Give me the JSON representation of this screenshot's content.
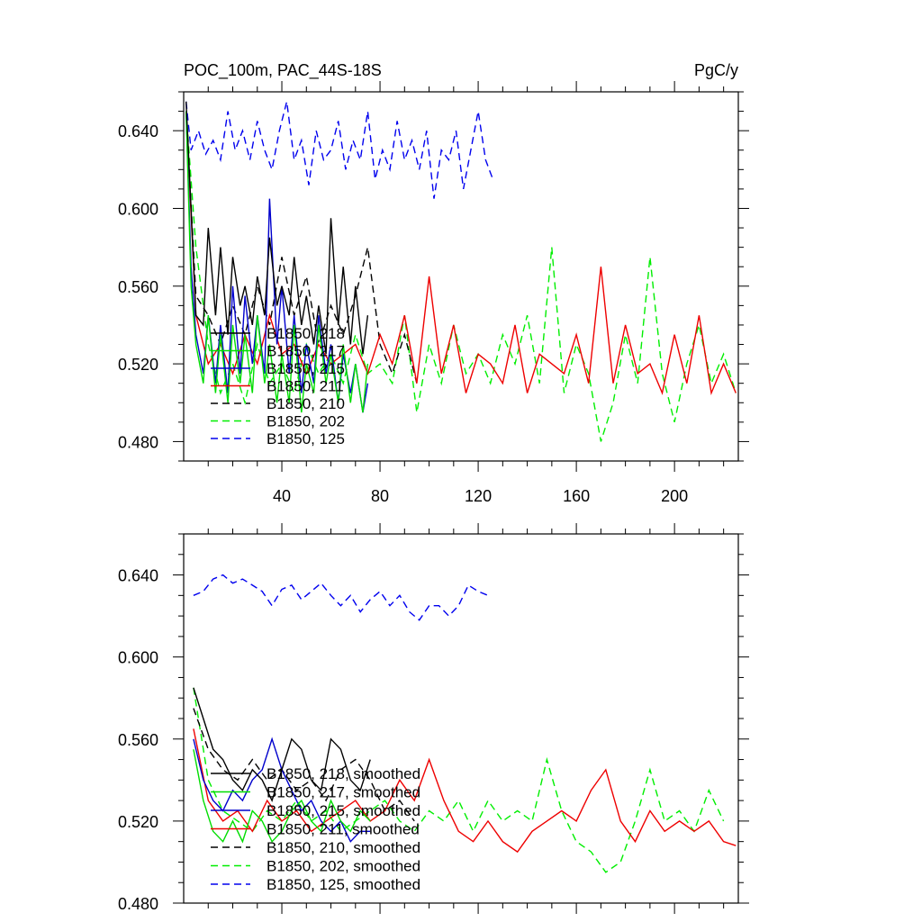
{
  "chart_data": [
    {
      "type": "line",
      "title": "POC_100m, PAC_44S-18S",
      "units": "PgC/y",
      "xlim": [
        0,
        226
      ],
      "ylim": [
        0.47,
        0.66
      ],
      "xticks": [
        40,
        80,
        120,
        160,
        200
      ],
      "xtick_labels": [
        "40",
        "80",
        "120",
        "160",
        "200"
      ],
      "yticks": [
        0.48,
        0.52,
        0.56,
        0.6,
        0.64
      ],
      "ytick_labels": [
        "0.480",
        "0.520",
        "0.560",
        "0.600",
        "0.640"
      ],
      "legend_position": "lower-left",
      "series": [
        {
          "name": "B1850, 218",
          "color": "#000000",
          "dash": "solid",
          "x": [
            1,
            3,
            5,
            8,
            10,
            13,
            15,
            18,
            20,
            23,
            25,
            28,
            30,
            33,
            35,
            38,
            40,
            43,
            45,
            48,
            50,
            53,
            55,
            58,
            60,
            63,
            65,
            68,
            70,
            73,
            75
          ],
          "y": [
            0.655,
            0.6,
            0.545,
            0.54,
            0.59,
            0.545,
            0.58,
            0.535,
            0.575,
            0.55,
            0.56,
            0.54,
            0.565,
            0.545,
            0.585,
            0.55,
            0.56,
            0.545,
            0.575,
            0.54,
            0.555,
            0.53,
            0.55,
            0.525,
            0.595,
            0.54,
            0.57,
            0.53,
            0.56,
            0.525,
            0.545
          ]
        },
        {
          "name": "B1850, 217",
          "color": "#00dd00",
          "dash": "solid",
          "x": [
            1,
            3,
            5,
            8,
            10,
            13,
            15,
            18,
            20,
            23,
            25,
            28,
            30,
            33,
            35,
            38,
            40,
            43,
            45,
            48,
            50,
            53,
            55,
            58,
            60,
            63,
            65,
            68,
            70,
            73,
            75
          ],
          "y": [
            0.65,
            0.56,
            0.53,
            0.51,
            0.545,
            0.505,
            0.535,
            0.5,
            0.54,
            0.51,
            0.535,
            0.505,
            0.545,
            0.51,
            0.53,
            0.5,
            0.525,
            0.5,
            0.54,
            0.495,
            0.52,
            0.505,
            0.54,
            0.51,
            0.525,
            0.5,
            0.53,
            0.5,
            0.52,
            0.495,
            0.52
          ]
        },
        {
          "name": "B1850, 215",
          "color": "#0000cc",
          "dash": "solid",
          "x": [
            1,
            3,
            5,
            8,
            10,
            13,
            15,
            18,
            20,
            23,
            25,
            28,
            30,
            33,
            35,
            38,
            40,
            43,
            45,
            48,
            50,
            53,
            55,
            58,
            60,
            63,
            65,
            68,
            70,
            73,
            75
          ],
          "y": [
            0.65,
            0.57,
            0.535,
            0.515,
            0.545,
            0.51,
            0.54,
            0.505,
            0.56,
            0.515,
            0.555,
            0.52,
            0.545,
            0.515,
            0.605,
            0.53,
            0.56,
            0.515,
            0.545,
            0.505,
            0.53,
            0.51,
            0.545,
            0.515,
            0.53,
            0.5,
            0.525,
            0.505,
            0.52,
            0.495,
            0.51
          ]
        },
        {
          "name": "B1850, 211",
          "color": "#ee0000",
          "dash": "solid",
          "x": [
            1,
            5,
            10,
            15,
            20,
            25,
            30,
            35,
            40,
            45,
            50,
            55,
            60,
            65,
            70,
            75,
            80,
            85,
            90,
            95,
            100,
            105,
            110,
            115,
            120,
            125,
            130,
            135,
            140,
            145,
            150,
            155,
            160,
            165,
            170,
            175,
            180,
            185,
            190,
            195,
            200,
            205,
            210,
            215,
            220,
            225
          ],
          "y": [
            0.65,
            0.545,
            0.52,
            0.53,
            0.515,
            0.535,
            0.52,
            0.545,
            0.525,
            0.53,
            0.515,
            0.53,
            0.52,
            0.525,
            0.53,
            0.515,
            0.535,
            0.52,
            0.545,
            0.51,
            0.565,
            0.515,
            0.54,
            0.505,
            0.525,
            0.52,
            0.51,
            0.54,
            0.505,
            0.525,
            0.52,
            0.515,
            0.535,
            0.51,
            0.57,
            0.51,
            0.54,
            0.515,
            0.52,
            0.505,
            0.535,
            0.51,
            0.545,
            0.505,
            0.52,
            0.505
          ]
        },
        {
          "name": "B1850, 210",
          "color": "#000000",
          "dash": "dash",
          "x": [
            1,
            5,
            10,
            15,
            20,
            25,
            30,
            35,
            40,
            45,
            50,
            55,
            60,
            65,
            70,
            75,
            80,
            85,
            90,
            95
          ],
          "y": [
            0.65,
            0.555,
            0.545,
            0.53,
            0.55,
            0.535,
            0.56,
            0.54,
            0.575,
            0.545,
            0.565,
            0.53,
            0.55,
            0.535,
            0.555,
            0.58,
            0.53,
            0.515,
            0.535,
            0.51
          ]
        },
        {
          "name": "B1850, 202",
          "color": "#00ee00",
          "dash": "dash",
          "x": [
            1,
            5,
            10,
            15,
            20,
            25,
            30,
            35,
            40,
            45,
            50,
            55,
            60,
            65,
            70,
            75,
            80,
            85,
            90,
            95,
            100,
            105,
            110,
            115,
            120,
            125,
            130,
            135,
            140,
            145,
            150,
            155,
            160,
            165,
            170,
            175,
            180,
            185,
            190,
            195,
            200,
            205,
            210,
            215,
            220,
            225
          ],
          "y": [
            0.65,
            0.58,
            0.53,
            0.505,
            0.52,
            0.5,
            0.53,
            0.51,
            0.52,
            0.505,
            0.53,
            0.515,
            0.525,
            0.51,
            0.535,
            0.515,
            0.52,
            0.51,
            0.545,
            0.495,
            0.53,
            0.51,
            0.54,
            0.515,
            0.525,
            0.51,
            0.535,
            0.52,
            0.545,
            0.51,
            0.58,
            0.505,
            0.53,
            0.515,
            0.48,
            0.5,
            0.535,
            0.51,
            0.575,
            0.515,
            0.49,
            0.52,
            0.54,
            0.51,
            0.525,
            0.505
          ]
        },
        {
          "name": "B1850, 125",
          "color": "#0000ee",
          "dash": "dash",
          "x": [
            1,
            3,
            6,
            9,
            12,
            15,
            18,
            21,
            24,
            27,
            30,
            33,
            36,
            39,
            42,
            45,
            48,
            51,
            54,
            57,
            60,
            63,
            66,
            69,
            72,
            75,
            78,
            81,
            84,
            87,
            90,
            93,
            96,
            99,
            102,
            105,
            108,
            111,
            114,
            117,
            120,
            123,
            126
          ],
          "y": [
            0.655,
            0.63,
            0.64,
            0.628,
            0.635,
            0.625,
            0.65,
            0.63,
            0.64,
            0.625,
            0.645,
            0.63,
            0.62,
            0.64,
            0.655,
            0.625,
            0.635,
            0.612,
            0.64,
            0.625,
            0.63,
            0.645,
            0.62,
            0.635,
            0.625,
            0.65,
            0.615,
            0.63,
            0.62,
            0.645,
            0.625,
            0.635,
            0.62,
            0.64,
            0.605,
            0.63,
            0.625,
            0.64,
            0.61,
            0.63,
            0.65,
            0.625,
            0.615
          ]
        }
      ]
    },
    {
      "type": "line",
      "title": "",
      "units": "",
      "xlim": [
        0,
        226
      ],
      "ylim": [
        0.48,
        0.66
      ],
      "xticks": [
        40,
        80,
        120,
        160,
        200
      ],
      "xtick_labels": [
        "",
        "",
        "",
        "",
        ""
      ],
      "yticks": [
        0.48,
        0.52,
        0.56,
        0.6,
        0.64
      ],
      "ytick_labels": [
        "0.480",
        "0.520",
        "0.560",
        "0.600",
        "0.640"
      ],
      "legend_position": "lower-left",
      "series": [
        {
          "name": "B1850, 218, smoothed",
          "color": "#000000",
          "dash": "solid",
          "x": [
            4,
            8,
            12,
            16,
            20,
            24,
            28,
            32,
            36,
            40,
            44,
            48,
            52,
            56,
            60,
            64,
            68,
            72,
            76
          ],
          "y": [
            0.585,
            0.57,
            0.555,
            0.55,
            0.54,
            0.535,
            0.545,
            0.54,
            0.53,
            0.545,
            0.56,
            0.555,
            0.54,
            0.535,
            0.56,
            0.555,
            0.54,
            0.535,
            0.55
          ]
        },
        {
          "name": "B1850, 217, smoothed",
          "color": "#00dd00",
          "dash": "solid",
          "x": [
            4,
            8,
            12,
            16,
            20,
            24,
            28,
            32,
            36,
            40,
            44,
            48,
            52,
            56,
            60,
            64,
            68,
            72,
            76
          ],
          "y": [
            0.555,
            0.53,
            0.515,
            0.51,
            0.52,
            0.51,
            0.525,
            0.52,
            0.51,
            0.515,
            0.525,
            0.53,
            0.52,
            0.515,
            0.53,
            0.52,
            0.515,
            0.525,
            0.52
          ]
        },
        {
          "name": "B1850, 215, smoothed",
          "color": "#0000cc",
          "dash": "solid",
          "x": [
            4,
            8,
            12,
            16,
            20,
            24,
            28,
            32,
            36,
            40,
            44,
            48,
            52,
            56,
            60,
            64,
            68,
            72,
            76
          ],
          "y": [
            0.56,
            0.54,
            0.53,
            0.525,
            0.535,
            0.53,
            0.54,
            0.545,
            0.56,
            0.545,
            0.535,
            0.525,
            0.53,
            0.52,
            0.515,
            0.52,
            0.51,
            0.515,
            0.515
          ]
        },
        {
          "name": "B1850, 211, smoothed",
          "color": "#ee0000",
          "dash": "solid",
          "x": [
            4,
            10,
            16,
            22,
            28,
            34,
            40,
            46,
            52,
            58,
            64,
            70,
            76,
            82,
            88,
            94,
            100,
            106,
            112,
            118,
            124,
            130,
            136,
            142,
            148,
            154,
            160,
            166,
            172,
            178,
            184,
            190,
            196,
            202,
            208,
            214,
            220,
            225
          ],
          "y": [
            0.565,
            0.53,
            0.52,
            0.525,
            0.515,
            0.53,
            0.52,
            0.525,
            0.515,
            0.52,
            0.525,
            0.53,
            0.52,
            0.525,
            0.54,
            0.53,
            0.55,
            0.53,
            0.515,
            0.51,
            0.52,
            0.51,
            0.505,
            0.515,
            0.52,
            0.525,
            0.52,
            0.535,
            0.545,
            0.52,
            0.51,
            0.525,
            0.515,
            0.52,
            0.515,
            0.52,
            0.51,
            0.508
          ]
        },
        {
          "name": "B1850, 210, smoothed",
          "color": "#000000",
          "dash": "dash",
          "x": [
            4,
            10,
            16,
            22,
            28,
            34,
            40,
            46,
            52,
            58,
            64,
            70,
            76,
            82,
            88,
            94
          ],
          "y": [
            0.575,
            0.555,
            0.545,
            0.54,
            0.55,
            0.54,
            0.545,
            0.535,
            0.54,
            0.53,
            0.545,
            0.55,
            0.54,
            0.525,
            0.53,
            0.52
          ]
        },
        {
          "name": "B1850, 202, smoothed",
          "color": "#00ee00",
          "dash": "dash",
          "x": [
            4,
            10,
            16,
            22,
            28,
            34,
            40,
            46,
            52,
            58,
            64,
            70,
            76,
            82,
            88,
            94,
            100,
            106,
            112,
            118,
            124,
            130,
            136,
            142,
            148,
            154,
            160,
            166,
            172,
            178,
            184,
            190,
            196,
            202,
            208,
            214,
            220
          ],
          "y": [
            0.585,
            0.54,
            0.525,
            0.52,
            0.515,
            0.525,
            0.52,
            0.53,
            0.52,
            0.525,
            0.515,
            0.52,
            0.525,
            0.53,
            0.52,
            0.515,
            0.525,
            0.52,
            0.53,
            0.515,
            0.53,
            0.52,
            0.525,
            0.52,
            0.55,
            0.525,
            0.51,
            0.505,
            0.495,
            0.5,
            0.52,
            0.545,
            0.52,
            0.525,
            0.515,
            0.535,
            0.52
          ]
        },
        {
          "name": "B1850, 125, smoothed",
          "color": "#0000ee",
          "dash": "dash",
          "x": [
            4,
            8,
            12,
            16,
            20,
            24,
            28,
            32,
            36,
            40,
            44,
            48,
            52,
            56,
            60,
            64,
            68,
            72,
            76,
            80,
            84,
            88,
            92,
            96,
            100,
            104,
            108,
            112,
            116,
            120,
            124
          ],
          "y": [
            0.63,
            0.632,
            0.638,
            0.64,
            0.636,
            0.638,
            0.635,
            0.632,
            0.625,
            0.633,
            0.635,
            0.628,
            0.632,
            0.636,
            0.63,
            0.625,
            0.63,
            0.622,
            0.628,
            0.632,
            0.625,
            0.63,
            0.622,
            0.618,
            0.625,
            0.625,
            0.62,
            0.625,
            0.635,
            0.632,
            0.63
          ]
        }
      ]
    }
  ]
}
